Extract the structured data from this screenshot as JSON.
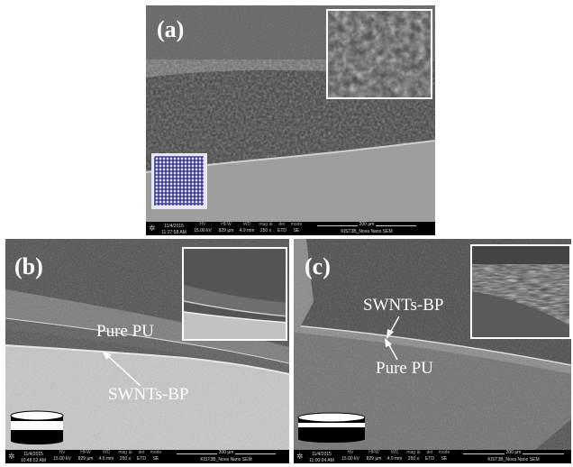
{
  "panels": {
    "a": {
      "label": "(a)",
      "info": {
        "date": "11/4/2015",
        "time": "11:27:58 AM",
        "hv_h": "HV",
        "hv": "15.00 kV",
        "hfw_h": "HFW",
        "hfw": "829 µm",
        "wd_h": "WD",
        "wd": "4.9 mm",
        "mag_h": "mag ⊞",
        "mag": "250 x",
        "det_h": "det",
        "det": "ETD",
        "mode_h": "mode",
        "mode": "SE",
        "scale": "200 µm",
        "org": "KIST3B_Nova Nano SEM"
      }
    },
    "b": {
      "label": "(b)",
      "annotations": {
        "pure_pu": "Pure PU",
        "swnts_bp": "SWNTs-BP"
      },
      "info": {
        "date": "11/4/2015",
        "time": "10:48:52 AM",
        "hv_h": "HV",
        "hv": "15.00 kV",
        "hfw_h": "HFW",
        "hfw": "829 µm",
        "wd_h": "WD",
        "wd": "4.6 mm",
        "mag_h": "mag ⊞",
        "mag": "250 x",
        "det_h": "det",
        "det": "ETD",
        "mode_h": "mode",
        "mode": "SE",
        "scale": "200 µm",
        "org": "KIST3B_Nova Nano SEM"
      }
    },
    "c": {
      "label": "(c)",
      "annotations": {
        "swnts_bp": "SWNTs-BP",
        "pure_pu": "Pure PU"
      },
      "info": {
        "date": "11/4/2015",
        "time": "11:00:04 AM",
        "hv_h": "HV",
        "hv": "15.00 kV",
        "hfw_h": "HFW",
        "hfw": "829 µm",
        "wd_h": "WD",
        "wd": "4.9 mm",
        "mag_h": "mag ⊞",
        "mag": "250 x",
        "det_h": "det",
        "det": "ETD",
        "mode_h": "mode",
        "mode": "SE",
        "scale": "200 µm",
        "org": "KIST3B_Nova Nano SEM"
      }
    }
  },
  "colors": {
    "grid": "#3a3a9a",
    "grid_bg": "#e8e8f4"
  }
}
